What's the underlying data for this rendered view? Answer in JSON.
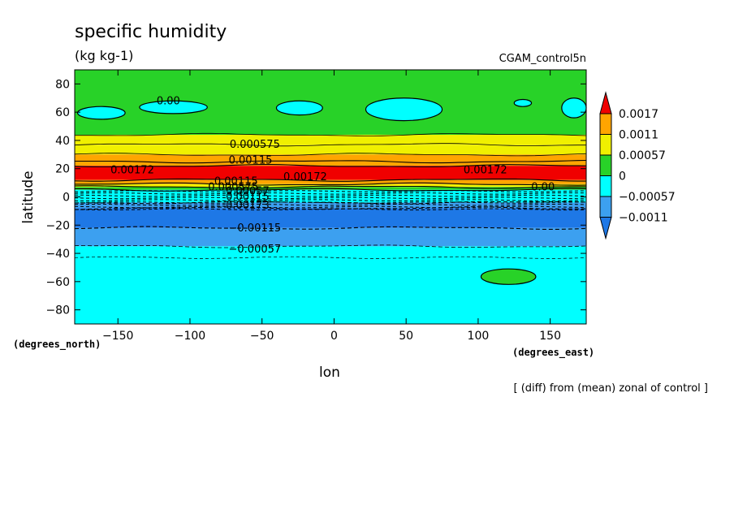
{
  "chart_data": {
    "type": "heatmap",
    "title": "specific humidity",
    "units": "(kg kg-1)",
    "dataset": "CGAM_control5n",
    "xlabel": "lon",
    "ylabel": "latitude",
    "xunits": "(degrees_east)",
    "yunits": "(degrees_north)",
    "footnote": "[ (diff) from (mean) zonal of control ]",
    "xlim": [
      -180,
      175
    ],
    "ylim": [
      -90,
      90
    ],
    "xticks": [
      -150,
      -100,
      -50,
      0,
      50,
      100,
      150
    ],
    "yticks": [
      80,
      60,
      40,
      20,
      0,
      -20,
      -40,
      -60,
      -80
    ],
    "x_tick_labels": [
      "−150",
      "−100",
      "−50",
      "0",
      "50",
      "100",
      "150"
    ],
    "y_tick_labels": [
      "80",
      "60",
      "40",
      "20",
      "0",
      "−20",
      "−40",
      "−60",
      "−80"
    ],
    "colorbar": {
      "labels": [
        "0.0017",
        "0.0011",
        "0.00057",
        "0",
        "−0.00057",
        "−0.0011"
      ],
      "levels": [
        -0.0011,
        -0.00057,
        0,
        0.00057,
        0.0011,
        0.0017
      ],
      "colors": [
        "#1e78e6",
        "#3ca0f0",
        "#00ffff",
        "#28d228",
        "#f0f000",
        "#ffa500",
        "#f00000"
      ]
    },
    "bands": [
      {
        "lat": [
          44,
          90
        ],
        "color": "#28d228"
      },
      {
        "lat": [
          37,
          44
        ],
        "color": "#f0f000"
      },
      {
        "lat": [
          30,
          37
        ],
        "color": "#f0f000"
      },
      {
        "lat": [
          25,
          30
        ],
        "color": "#ffa500"
      },
      {
        "lat": [
          22,
          25
        ],
        "color": "#ffa500"
      },
      {
        "lat": [
          12,
          22
        ],
        "color": "#f00000"
      },
      {
        "lat": [
          9,
          12
        ],
        "color": "#ffa500"
      },
      {
        "lat": [
          7,
          9
        ],
        "color": "#f0f000"
      },
      {
        "lat": [
          5,
          7
        ],
        "color": "#28d228"
      },
      {
        "lat": [
          -4,
          5
        ],
        "color": "#00ffff"
      },
      {
        "lat": [
          -8,
          -4
        ],
        "color": "#3ca0f0"
      },
      {
        "lat": [
          -22,
          -8
        ],
        "color": "#1e78e6"
      },
      {
        "lat": [
          -35,
          -22
        ],
        "color": "#3ca0f0"
      },
      {
        "lat": [
          -90,
          -35
        ],
        "color": "#00ffff"
      }
    ],
    "patches": [
      {
        "lon": [
          -178,
          -145
        ],
        "lat": [
          55,
          64
        ],
        "color": "#00ffff"
      },
      {
        "lon": [
          -135,
          -88
        ],
        "lat": [
          59,
          68
        ],
        "color": "#00ffff"
      },
      {
        "lon": [
          -40,
          -8
        ],
        "lat": [
          58,
          68
        ],
        "color": "#00ffff"
      },
      {
        "lon": [
          22,
          75
        ],
        "lat": [
          54,
          70
        ],
        "color": "#00ffff"
      },
      {
        "lon": [
          125,
          137
        ],
        "lat": [
          64,
          69
        ],
        "color": "#00ffff"
      },
      {
        "lon": [
          158,
          175
        ],
        "lat": [
          56,
          70
        ],
        "color": "#00ffff"
      },
      {
        "lon": [
          102,
          140
        ],
        "lat": [
          -62,
          -51
        ],
        "color": "#28d228"
      }
    ],
    "contour_labels": [
      {
        "text": "0.00",
        "lon": -115,
        "lat": 68
      },
      {
        "text": "0.000575",
        "lon": -55,
        "lat": 37
      },
      {
        "text": "0.00115",
        "lon": -58,
        "lat": 26
      },
      {
        "text": "0.00172",
        "lon": -140,
        "lat": 19
      },
      {
        "text": "0.00172",
        "lon": -20,
        "lat": 14
      },
      {
        "text": "0.00172",
        "lon": 105,
        "lat": 19
      },
      {
        "text": "0.00115",
        "lon": -68,
        "lat": 11
      },
      {
        "text": "0.000575",
        "lon": -70,
        "lat": 7
      },
      {
        "text": "0.00057",
        "lon": -60,
        "lat": 4
      },
      {
        "text": "0.00115",
        "lon": -60,
        "lat": 0
      },
      {
        "text": "0.00173",
        "lon": -60,
        "lat": -6
      },
      {
        "text": "0.00",
        "lon": 145,
        "lat": 7
      },
      {
        "text": "−0.00115",
        "lon": -55,
        "lat": -22
      },
      {
        "text": "−0.00057",
        "lon": -55,
        "lat": -37
      }
    ]
  }
}
